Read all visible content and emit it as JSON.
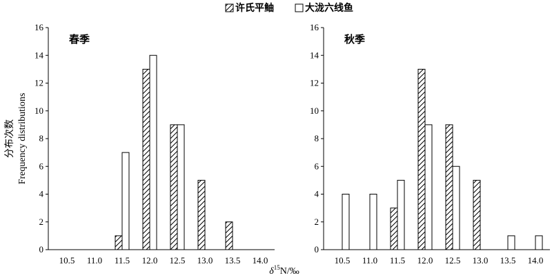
{
  "chart_data": {
    "type": "bar",
    "legend": {
      "position": "top-center",
      "entries": [
        {
          "name": "许氏平鲉",
          "pattern": "hatched"
        },
        {
          "name": "大泷六线鱼",
          "pattern": "open"
        }
      ]
    },
    "xlabel": "δ15N/‰",
    "ylabel_cn": "分布次数",
    "ylabel_en": "Frequency distributions",
    "ylim": [
      0,
      16
    ],
    "yticks": [
      0,
      2,
      4,
      6,
      8,
      10,
      12,
      14,
      16
    ],
    "categories": [
      "10.5",
      "11.0",
      "11.5",
      "12.0",
      "12.5",
      "13.0",
      "13.5",
      "14.0"
    ],
    "grid": false,
    "panels": [
      {
        "label": "春季",
        "series": [
          {
            "name": "许氏平鲉",
            "values": [
              0,
              0,
              1,
              13,
              9,
              5,
              2,
              0
            ]
          },
          {
            "name": "大泷六线鱼",
            "values": [
              0,
              0,
              7,
              14,
              9,
              0,
              0,
              0
            ]
          }
        ]
      },
      {
        "label": "秋季",
        "series": [
          {
            "name": "许氏平鲉",
            "values": [
              0,
              0,
              3,
              13,
              9,
              5,
              0,
              0
            ]
          },
          {
            "name": "大泷六线鱼",
            "values": [
              4,
              4,
              5,
              9,
              6,
              0,
              1,
              1
            ]
          }
        ]
      }
    ]
  }
}
